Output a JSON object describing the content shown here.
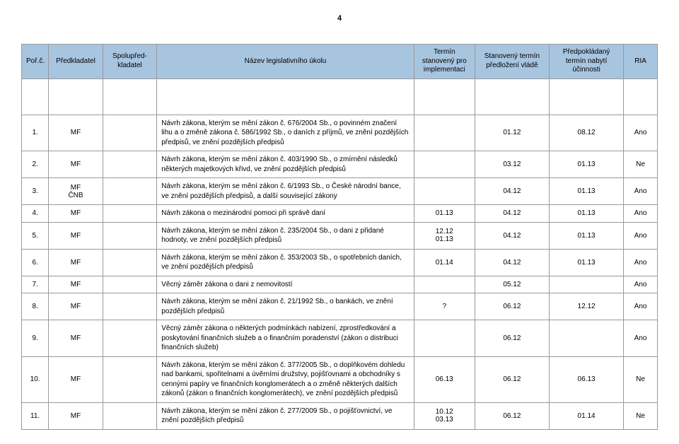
{
  "page_number": "4",
  "table": {
    "columns": [
      "Poř.č.",
      "Předkladatel",
      "Spolupřed-kladatel",
      "Název legislativního úkolu",
      "Termín stanovený pro implementaci",
      "Stanovený termín předložení vládě",
      "Předpokládaný termín nabytí účinnosti",
      "RIA"
    ],
    "rows": [
      {
        "n": "1.",
        "pred": "MF",
        "spol": "",
        "task": "Návrh zákona, kterým se mění zákon č. 676/2004 Sb., o povinném značení lihu a o změně zákona č. 586/1992 Sb., o daních z příjmů, ve znění pozdějších předpisů, ve znění pozdějších předpisů",
        "impl": "",
        "vlade": "01.12",
        "ucin": "08.12",
        "ria": "Ano"
      },
      {
        "n": "2.",
        "pred": "MF",
        "spol": "",
        "task": "Návrh zákona, kterým se mění zákon č. 403/1990 Sb., o zmírnění následků některých majetkových křivd, ve znění pozdějších předpisů",
        "impl": "",
        "vlade": "03.12",
        "ucin": "01.13",
        "ria": "Ne"
      },
      {
        "n": "3.",
        "pred": "MF\nČNB",
        "spol": "",
        "task": "Návrh zákona, kterým se mění zákon č. 6/1993 Sb., o České národní bance, ve znění pozdějších předpisů, a další související zákony",
        "impl": "",
        "vlade": "04.12",
        "ucin": "01.13",
        "ria": "Ano"
      },
      {
        "n": "4.",
        "pred": "MF",
        "spol": "",
        "task": "Návrh zákona o mezinárodní pomoci při správě daní",
        "impl": "01.13",
        "vlade": "04.12",
        "ucin": "01.13",
        "ria": "Ano"
      },
      {
        "n": "5.",
        "pred": "MF",
        "spol": "",
        "task": "Návrh zákona, kterým se mění zákon č. 235/2004 Sb., o dani z přidané hodnoty, ve znění pozdějších předpisů",
        "impl": "12.12\n01.13",
        "vlade": "04.12",
        "ucin": "01.13",
        "ria": "Ano"
      },
      {
        "n": "6.",
        "pred": "MF",
        "spol": "",
        "task": "Návrh zákona, kterým se mění zákon č. 353/2003 Sb., o spotřebních daních, ve znění pozdějších předpisů",
        "impl": "01.14",
        "vlade": "04.12",
        "ucin": "01.13",
        "ria": "Ano"
      },
      {
        "n": "7.",
        "pred": "MF",
        "spol": "",
        "task": "Věcný záměr zákona o dani z nemovitostí",
        "impl": "",
        "vlade": "05.12",
        "ucin": "",
        "ria": "Ano"
      },
      {
        "n": "8.",
        "pred": "MF",
        "spol": "",
        "task": "Návrh zákona, kterým se mění zákon č. 21/1992 Sb., o bankách, ve znění pozdějších předpisů",
        "impl": "?",
        "vlade": "06.12",
        "ucin": "12.12",
        "ria": "Ano"
      },
      {
        "n": "9.",
        "pred": "MF",
        "spol": "",
        "task": "Věcný záměr zákona o některých podmínkách nabízení, zprostředkování a poskytování finančních služeb a o finančním poradenství (zákon o distribuci finančních služeb)",
        "impl": "",
        "vlade": "06.12",
        "ucin": "",
        "ria": "Ano"
      },
      {
        "n": "10.",
        "pred": "MF",
        "spol": "",
        "task": "Návrh zákona, kterým se mění zákon č. 377/2005 Sb., o doplňkovém dohledu nad bankami, spořitelnami a úvěrními družstvy, pojišťovnami a obchodníky s cennými papíry ve finančních konglomerátech a o změně některých dalších zákonů (zákon o finančních konglomerátech), ve znění pozdějších předpisů",
        "impl": "06.13",
        "vlade": "06.12",
        "ucin": "06.13",
        "ria": "Ne"
      },
      {
        "n": "11.",
        "pred": "MF",
        "spol": "",
        "task": "Návrh zákona, kterým se mění zákon č. 277/2009 Sb., o pojišťovnictví, ve znění pozdějších předpisů",
        "impl": "10.12\n03.13",
        "vlade": "06.12",
        "ucin": "01.14",
        "ria": "Ne"
      }
    ]
  }
}
